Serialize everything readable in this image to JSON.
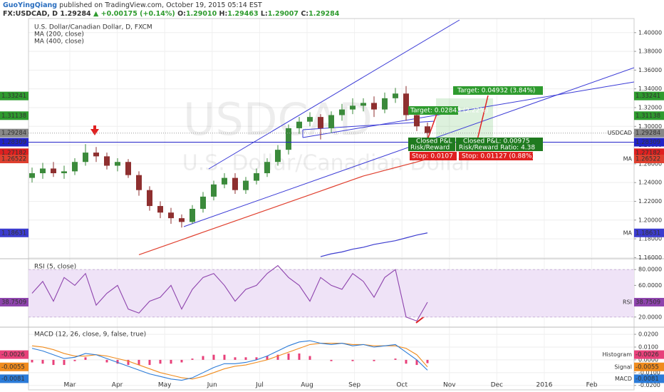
{
  "header": {
    "author": "GuoYingQiang",
    "published": "published on TradingView.com, October 19, 2015 05:14 EST",
    "symbol": "FX:USDCAD, D",
    "price": "1.29284",
    "change": "+0.00175 (+0.14%)",
    "open_label": "O:",
    "open": "1.29010",
    "high_label": "H:",
    "high": "1.29463",
    "low_label": "L:",
    "low": "1.29007",
    "close_label": "C:",
    "close": "1.29284"
  },
  "chart_data": [
    {
      "type": "candlestick",
      "title": "U.S. Dollar/Canadian Dollar, D, FXCM",
      "watermark": [
        "USDCAD",
        "U.S. Dollar/Canadian Dollar"
      ],
      "x_labels": [
        "Mar",
        "Apr",
        "May",
        "Jun",
        "Jul",
        "Aug",
        "Sep",
        "Oct",
        "Nov",
        "Dec",
        "2016",
        "Feb"
      ],
      "up_color": "#3b8a3b",
      "down_color": "#8e2f2f",
      "open": [
        1.245,
        1.25,
        1.255,
        1.25,
        1.252,
        1.262,
        1.272,
        1.268,
        1.258,
        1.262,
        1.248,
        1.232,
        1.215,
        1.208,
        1.202,
        1.198,
        1.212,
        1.225,
        1.238,
        1.245,
        1.232,
        1.242,
        1.25,
        1.262,
        1.275,
        1.298,
        1.305,
        1.31,
        1.298,
        1.312,
        1.318,
        1.322,
        1.325,
        1.318,
        1.33,
        1.335,
        1.312,
        1.3
      ],
      "high": [
        1.256,
        1.261,
        1.262,
        1.258,
        1.266,
        1.281,
        1.278,
        1.272,
        1.266,
        1.265,
        1.252,
        1.236,
        1.22,
        1.213,
        1.206,
        1.216,
        1.23,
        1.242,
        1.25,
        1.25,
        1.246,
        1.255,
        1.266,
        1.28,
        1.302,
        1.31,
        1.315,
        1.313,
        1.316,
        1.324,
        1.33,
        1.33,
        1.332,
        1.336,
        1.341,
        1.343,
        1.316,
        1.304
      ],
      "low": [
        1.24,
        1.244,
        1.246,
        1.244,
        1.248,
        1.258,
        1.262,
        1.254,
        1.252,
        1.245,
        1.226,
        1.21,
        1.202,
        1.196,
        1.192,
        1.196,
        1.208,
        1.221,
        1.234,
        1.228,
        1.228,
        1.238,
        1.246,
        1.258,
        1.27,
        1.292,
        1.3,
        1.286,
        1.293,
        1.306,
        1.313,
        1.316,
        1.31,
        1.314,
        1.325,
        1.306,
        1.295,
        1.2875
      ],
      "close": [
        1.25,
        1.255,
        1.25,
        1.252,
        1.262,
        1.272,
        1.268,
        1.258,
        1.262,
        1.248,
        1.232,
        1.215,
        1.208,
        1.202,
        1.198,
        1.212,
        1.225,
        1.238,
        1.245,
        1.232,
        1.242,
        1.25,
        1.262,
        1.275,
        1.298,
        1.305,
        1.31,
        1.298,
        1.312,
        1.318,
        1.322,
        1.325,
        1.318,
        1.33,
        1.335,
        1.312,
        1.3,
        1.29284
      ],
      "last_tag": "USDCAD",
      "ma_tag": "MA",
      "series": [
        {
          "name": "MA (200, close)",
          "color": "#e0402f",
          "values": [
            null,
            null,
            null,
            null,
            null,
            null,
            null,
            null,
            null,
            null,
            1.163,
            1.167,
            1.171,
            1.175,
            1.179,
            1.183,
            1.187,
            1.191,
            1.195,
            1.199,
            1.203,
            1.207,
            1.211,
            1.215,
            1.219,
            1.223,
            1.227,
            1.231,
            1.235,
            1.239,
            1.243,
            1.247,
            1.25,
            1.253,
            1.256,
            1.259,
            1.262,
            1.26522
          ]
        },
        {
          "name": "MA (400, close)",
          "color": "#3c3ccf",
          "values": [
            null,
            null,
            null,
            null,
            null,
            null,
            null,
            null,
            null,
            null,
            null,
            null,
            null,
            null,
            null,
            null,
            null,
            null,
            null,
            null,
            null,
            null,
            null,
            null,
            null,
            null,
            null,
            1.161,
            1.164,
            1.166,
            1.169,
            1.171,
            1.174,
            1.176,
            1.178,
            1.181,
            1.184,
            1.18631
          ]
        }
      ],
      "price_tags": [
        {
          "value": 1.33241,
          "color": "#2e9b2e"
        },
        {
          "value": 1.31138,
          "color": "#2e9b2e"
        },
        {
          "value": 1.28309,
          "color": "#2323c8"
        },
        {
          "value": 1.27182,
          "color": "#e02020"
        }
      ],
      "annotations": {
        "trade1": {
          "target": "Target: 0.02843 (2.22%)",
          "pnl": "Closed P&L",
          "rr": "Risk/Reward",
          "stop": "Stop: 0.0107"
        },
        "trade2": {
          "target": "Target: 0.04932 (3.84%)",
          "pnl": "Closed P&L: 0.00975",
          "rr": "Risk/Reward Ratio: 4.38",
          "stop": "Stop: 0.01127 (0.88%)"
        }
      },
      "ylim": [
        1.158,
        1.412
      ],
      "yticks": [
        {
          "value": 1.16,
          "label": "1.16000"
        },
        {
          "value": 1.18,
          "label": "1.18000"
        },
        {
          "value": 1.2,
          "label": "1.20000"
        },
        {
          "value": 1.22,
          "label": "1.22000"
        },
        {
          "value": 1.24,
          "label": "1.24000"
        },
        {
          "value": 1.26,
          "label": "1.26000"
        },
        {
          "value": 1.28,
          "label": "1.28000"
        },
        {
          "value": 1.3,
          "label": "1.30000"
        },
        {
          "value": 1.32,
          "label": "1.32000"
        },
        {
          "value": 1.34,
          "label": "1.34000"
        },
        {
          "value": 1.36,
          "label": "1.36000"
        },
        {
          "value": 1.38,
          "label": "1.38000"
        },
        {
          "value": 1.4,
          "label": "1.40000"
        }
      ]
    },
    {
      "type": "line",
      "title": "RSI (5, close)",
      "band": [
        20,
        80
      ],
      "band_color": "#efe3f7",
      "series": [
        {
          "name": "RSI",
          "color": "#8e44ad",
          "values": [
            50,
            65,
            40,
            70,
            60,
            75,
            35,
            50,
            60,
            30,
            25,
            40,
            45,
            60,
            30,
            55,
            70,
            75,
            60,
            40,
            55,
            60,
            75,
            85,
            70,
            60,
            40,
            70,
            60,
            55,
            75,
            65,
            45,
            70,
            80,
            20,
            15,
            38.7509
          ]
        }
      ],
      "ylim": [
        9,
        91
      ],
      "yticks": [
        {
          "value": 20,
          "label": "20.0000"
        },
        {
          "value": 40,
          "label": "40.0000"
        },
        {
          "value": 60,
          "label": "60.0000"
        },
        {
          "value": 80,
          "label": "80.0000"
        }
      ]
    },
    {
      "type": "macd",
      "title": "MACD (12, 26, close, 9, false, true)",
      "series": [
        {
          "name": "Histogram",
          "color": "#e8407a",
          "values": [
            -0.002,
            -0.003,
            -0.004,
            -0.004,
            -0.001,
            0.002,
            0,
            -0.002,
            -0.003,
            -0.004,
            -0.004,
            -0.004,
            -0.003,
            -0.003,
            -0.002,
            0.001,
            0.003,
            0.004,
            0.004,
            0.002,
            0.002,
            0.002,
            0.003,
            0.004,
            0.005,
            0.005,
            0.003,
            0,
            -0.001,
            0,
            -0.001,
            0,
            -0.001,
            0,
            0.001,
            -0.003,
            -0.004,
            -0.0026
          ]
        },
        {
          "name": "Signal",
          "color": "#f08c1e",
          "values": [
            0.011,
            0.01,
            0.008,
            0.005,
            0.003,
            0.003,
            0.004,
            0.003,
            0.001,
            -0.001,
            -0.004,
            -0.007,
            -0.01,
            -0.012,
            -0.014,
            -0.015,
            -0.013,
            -0.01,
            -0.007,
            -0.005,
            -0.004,
            -0.002,
            0.0,
            0.003,
            0.006,
            0.009,
            0.012,
            0.013,
            0.013,
            0.013,
            0.012,
            0.012,
            0.011,
            0.011,
            0.011,
            0.009,
            0.004,
            -0.0055
          ]
        },
        {
          "name": "MACD",
          "color": "#2b7bd8",
          "values": [
            0.009,
            0.007,
            0.004,
            0.001,
            0.002,
            0.005,
            0.004,
            0.001,
            -0.002,
            -0.005,
            -0.008,
            -0.011,
            -0.013,
            -0.015,
            -0.016,
            -0.014,
            -0.01,
            -0.006,
            -0.003,
            -0.003,
            -0.002,
            0.0,
            0.003,
            0.007,
            0.011,
            0.014,
            0.015,
            0.013,
            0.012,
            0.013,
            0.011,
            0.012,
            0.01,
            0.011,
            0.012,
            0.006,
            0.0,
            -0.0081
          ]
        }
      ],
      "ylim": [
        -0.0235,
        0.0245
      ],
      "yticks": [
        {
          "value": -0.02,
          "label": "-0.0200"
        },
        {
          "value": -0.01,
          "label": "-0.0100"
        },
        {
          "value": 0,
          "label": "0.0000"
        },
        {
          "value": 0.01,
          "label": "0.0100"
        },
        {
          "value": 0.02,
          "label": "0.0200"
        }
      ]
    }
  ]
}
